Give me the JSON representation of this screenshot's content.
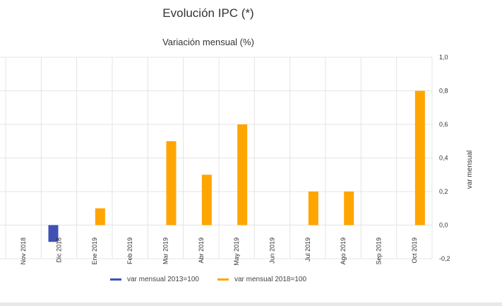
{
  "chart_data": {
    "type": "bar",
    "title": "Evolución IPC (*)",
    "subtitle": "Variación mensual (%)",
    "ylabel": "var mensual",
    "ylim": [
      -0.2,
      1.0
    ],
    "yticks": [
      -0.2,
      0.0,
      0.2,
      0.4,
      0.6,
      0.8,
      1.0
    ],
    "ytick_labels": [
      "-0,2",
      "0,0",
      "0,2",
      "0,4",
      "0,6",
      "0,8",
      "1,0"
    ],
    "categories": [
      "Nov 2018",
      "Dic 2018",
      "Ene 2019",
      "Feb 2019",
      "Mar 2019",
      "Abr 2019",
      "May 2019",
      "Jun 2019",
      "Jul 2019",
      "Ago 2019",
      "Sep 2019",
      "Oct 2019"
    ],
    "series": [
      {
        "name": "var mensual 2013=100",
        "color": "#3f51b5",
        "values": [
          null,
          -0.1,
          null,
          null,
          null,
          null,
          null,
          null,
          null,
          null,
          null,
          null
        ]
      },
      {
        "name": "var mensual 2018=100",
        "color": "#ffa500",
        "values": [
          null,
          null,
          0.1,
          null,
          0.5,
          0.3,
          0.6,
          null,
          0.2,
          0.2,
          null,
          0.8
        ]
      }
    ],
    "legend_position": "bottom"
  }
}
